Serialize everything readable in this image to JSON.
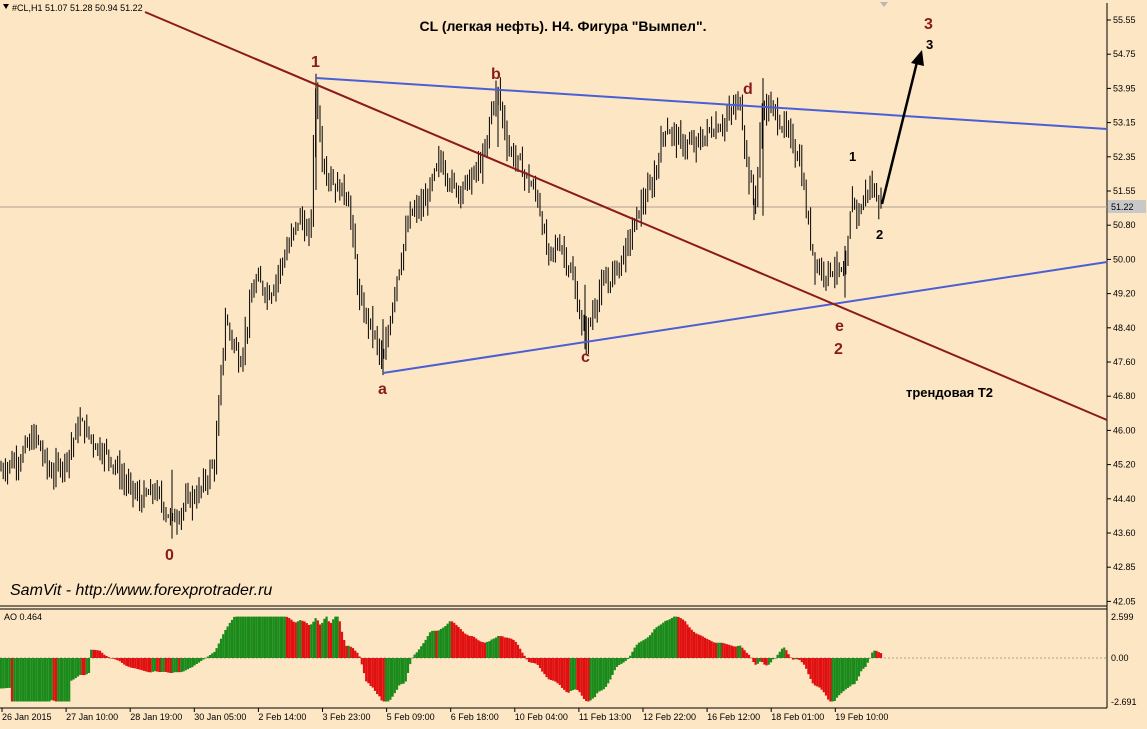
{
  "header": {
    "symbol_info": "#CL,H1  51.07 51.28 50.94 51.22",
    "title": "CL (легкая нефть). H4. Фигура \"Вымпел\"."
  },
  "watermark": "SamVit - http://www.forexprotrader.ru",
  "price_axis": {
    "ticks": [
      "55.55",
      "54.75",
      "53.95",
      "53.15",
      "52.35",
      "51.55",
      "50.80",
      "50.00",
      "49.20",
      "48.40",
      "47.60",
      "46.80",
      "46.00",
      "45.20",
      "44.40",
      "43.60",
      "42.85",
      "42.05"
    ],
    "current_price": "51.22"
  },
  "time_axis": {
    "labels": [
      "26 Jan 2015",
      "27 Jan 10:00",
      "28 Jan 19:00",
      "30 Jan 05:00",
      "2 Feb 14:00",
      "3 Feb 23:00",
      "5 Feb 09:00",
      "6 Feb 18:00",
      "10 Feb 04:00",
      "11 Feb 13:00",
      "12 Feb 22:00",
      "16 Feb 12:00",
      "18 Feb 01:00",
      "19 Feb 10:00"
    ]
  },
  "indicator": {
    "label": "AO 0.464",
    "ticks": [
      "2.599",
      "0.00",
      "-2.691"
    ]
  },
  "annotations": {
    "w0": "0",
    "w1": "1",
    "w2": "2",
    "w3": "3",
    "a": "a",
    "b": "b",
    "c": "c",
    "d": "d",
    "e": "e",
    "s1": "1",
    "s2": "2",
    "s3": "3",
    "trend_label": "трендовая Т2"
  },
  "colors": {
    "background": "#fde6c4",
    "candles": "#000000",
    "pennant_lines": "#4a5fd4",
    "trend_line": "#8b1a1a",
    "ao_up": "#1a8a1a",
    "ao_down": "#e01010"
  },
  "chart_data": {
    "type": "candlestick",
    "ylim": [
      42.05,
      55.9
    ],
    "current_price": 51.22,
    "pivots": [
      {
        "label": "0",
        "time": "29 Jan",
        "price": 43.6
      },
      {
        "label": "1",
        "time": "3 Feb",
        "price": 54.2
      },
      {
        "label": "a",
        "time": "4 Feb",
        "price": 47.4
      },
      {
        "label": "b",
        "time": "9 Feb",
        "price": 54.0
      },
      {
        "label": "c",
        "time": "11 Feb",
        "price": 48.0
      },
      {
        "label": "d",
        "time": "17 Feb",
        "price": 54.1
      },
      {
        "label": "e",
        "time": "19 Feb",
        "price": 49.0
      }
    ],
    "ao_range": [
      -2.691,
      2.599
    ],
    "ao_last": 0.464
  }
}
